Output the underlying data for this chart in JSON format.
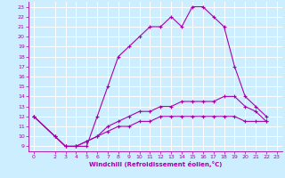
{
  "xlabel": "Windchill (Refroidissement éolien,°C)",
  "bg_color": "#cceeff",
  "grid_color": "#ffffff",
  "line_color": "#aa00aa",
  "xlim": [
    -0.5,
    23.5
  ],
  "ylim": [
    8.5,
    23.5
  ],
  "xticks": [
    0,
    2,
    3,
    4,
    5,
    6,
    7,
    8,
    9,
    10,
    11,
    12,
    13,
    14,
    15,
    16,
    17,
    18,
    19,
    20,
    21,
    22,
    23
  ],
  "yticks": [
    9,
    10,
    11,
    12,
    13,
    14,
    15,
    16,
    17,
    18,
    19,
    20,
    21,
    22,
    23
  ],
  "line1_x": [
    0,
    2,
    3,
    4,
    5,
    6,
    7,
    8,
    9,
    10,
    11,
    12,
    13,
    14,
    15,
    16,
    17,
    18,
    19,
    20,
    21,
    22
  ],
  "line1_y": [
    12,
    10,
    9,
    9,
    9,
    12,
    15,
    18,
    19,
    20,
    21,
    21,
    22,
    21,
    23,
    23,
    22,
    21,
    17,
    14,
    13,
    12
  ],
  "line2_x": [
    0,
    2,
    3,
    4,
    5,
    6,
    7,
    8,
    9,
    10,
    11,
    12,
    13,
    14,
    15,
    16,
    17,
    18,
    19,
    20,
    21,
    22
  ],
  "line2_y": [
    12,
    10,
    9,
    9,
    9.5,
    10,
    11,
    11.5,
    12,
    12.5,
    12.5,
    13,
    13,
    13.5,
    13.5,
    13.5,
    13.5,
    14,
    14,
    13,
    12.5,
    11.5
  ],
  "line3_x": [
    0,
    2,
    3,
    4,
    5,
    6,
    7,
    8,
    9,
    10,
    11,
    12,
    13,
    14,
    15,
    16,
    17,
    18,
    19,
    20,
    21,
    22
  ],
  "line3_y": [
    12,
    10,
    9,
    9,
    9.5,
    10,
    10.5,
    11,
    11,
    11.5,
    11.5,
    12,
    12,
    12,
    12,
    12,
    12,
    12,
    12,
    11.5,
    11.5,
    11.5
  ],
  "xlabel_fontsize": 5.0,
  "tick_fontsize": 4.5,
  "marker_size": 3.0,
  "line_width": 0.8
}
